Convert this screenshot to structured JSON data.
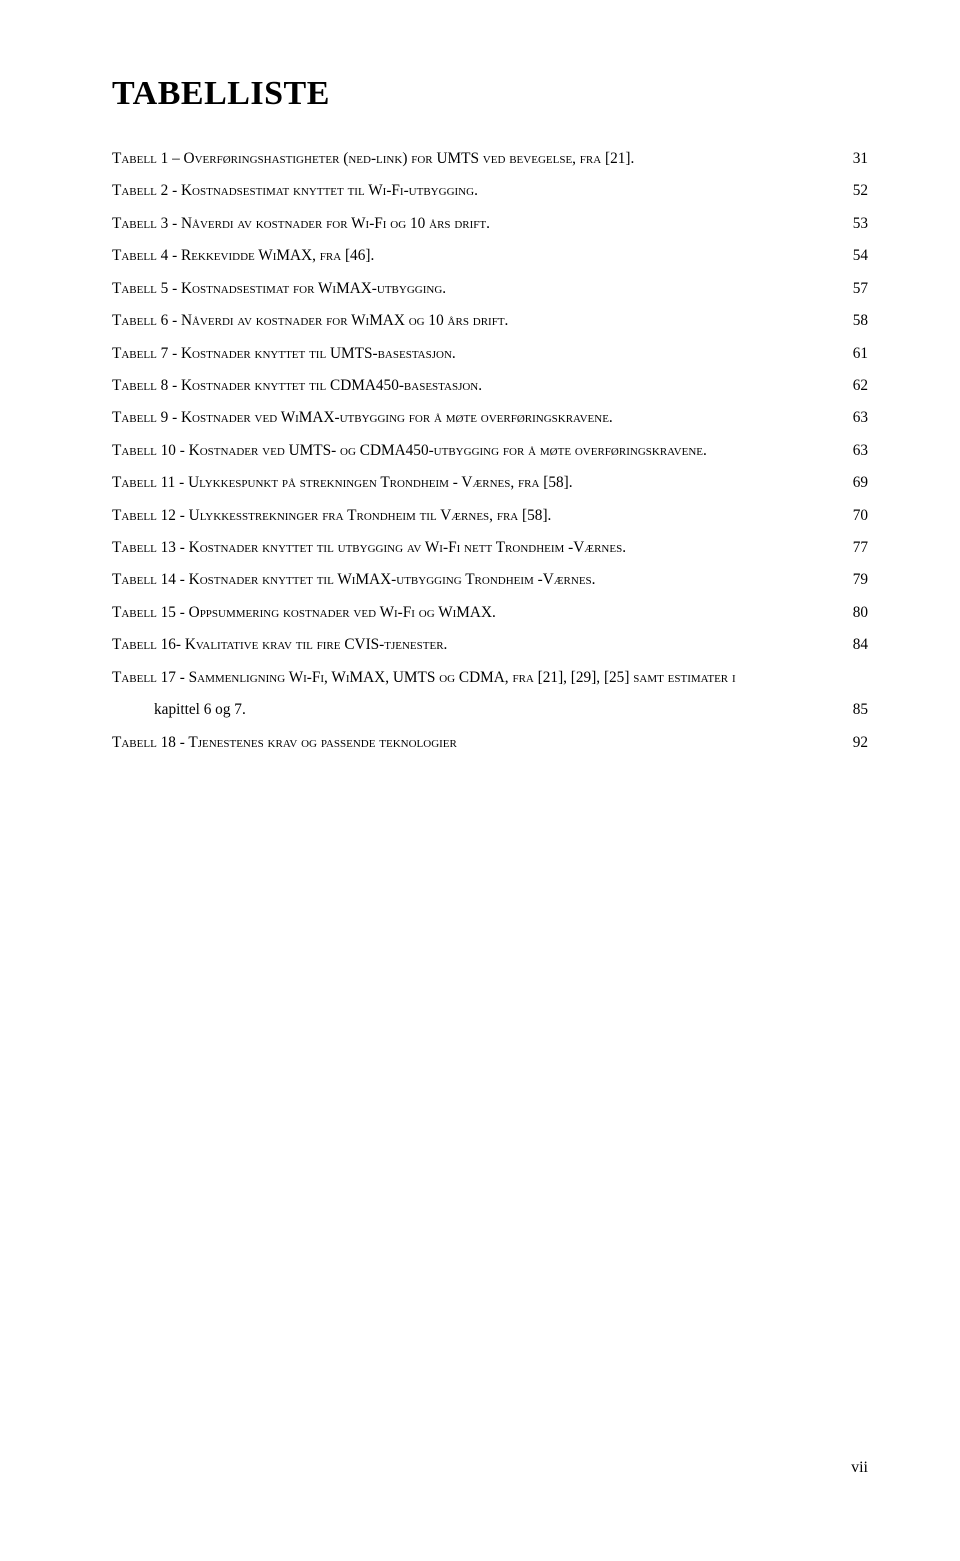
{
  "title": "TABELLISTE",
  "footer_page": "vii",
  "entries": [
    {
      "text": "Tabell 1 – Overføringshastigheter (ned-link) for UMTS ved bevegelse, fra [21].",
      "page": "31"
    },
    {
      "text": "Tabell 2 - Kostnadsestimat knyttet til Wi-Fi-utbygging.",
      "page": "52"
    },
    {
      "text": "Tabell 3 - Nåverdi av kostnader for Wi-Fi og 10 års drift.",
      "page": "53"
    },
    {
      "text": "Tabell 4 - Rekkevidde WiMAX, fra [46].",
      "page": "54"
    },
    {
      "text": "Tabell 5 - Kostnadsestimat for WiMAX-utbygging.",
      "page": "57"
    },
    {
      "text": "Tabell 6 - Nåverdi av kostnader for WiMAX og 10 års drift.",
      "page": "58"
    },
    {
      "text": "Tabell 7 - Kostnader knyttet til UMTS-basestasjon.",
      "page": "61"
    },
    {
      "text": "Tabell 8 - Kostnader knyttet til CDMA450-basestasjon.",
      "page": "62"
    },
    {
      "text": "Tabell 9 - Kostnader ved WiMAX-utbygging for å møte overføringskravene.",
      "page": "63"
    },
    {
      "text": "Tabell 10 - Kostnader ved UMTS- og CDMA450-utbygging for å møte overføringskravene.",
      "page": "63"
    },
    {
      "text": "Tabell 11 - Ulykkespunkt på strekningen Trondheim - Værnes, fra [58].",
      "page": "69"
    },
    {
      "text": "Tabell 12 - Ulykkesstrekninger fra Trondheim til Værnes, fra [58].",
      "page": "70"
    },
    {
      "text": "Tabell 13 - Kostnader knyttet til utbygging av Wi-Fi nett Trondheim -Værnes.",
      "page": "77"
    },
    {
      "text": "Tabell 14 - Kostnader knyttet til WiMAX-utbygging Trondheim -Værnes.",
      "page": "79"
    },
    {
      "text": "Tabell 15 - Oppsummering kostnader ved Wi-Fi og WiMAX.",
      "page": "80"
    },
    {
      "text": "Tabell 16- Kvalitative krav til fire CVIS-tjenester.",
      "page": "84"
    },
    {
      "text_part1": "Tabell 17 - Sammenligning Wi-Fi, WiMAX, UMTS og CDMA, fra [21], [29], [25] samt estimater i",
      "text_part2": "kapittel 6 og 7.",
      "page": "85",
      "wrap": true
    },
    {
      "text": "Tabell 18 - Tjenestenes krav og passende teknologier",
      "page": "92"
    }
  ]
}
